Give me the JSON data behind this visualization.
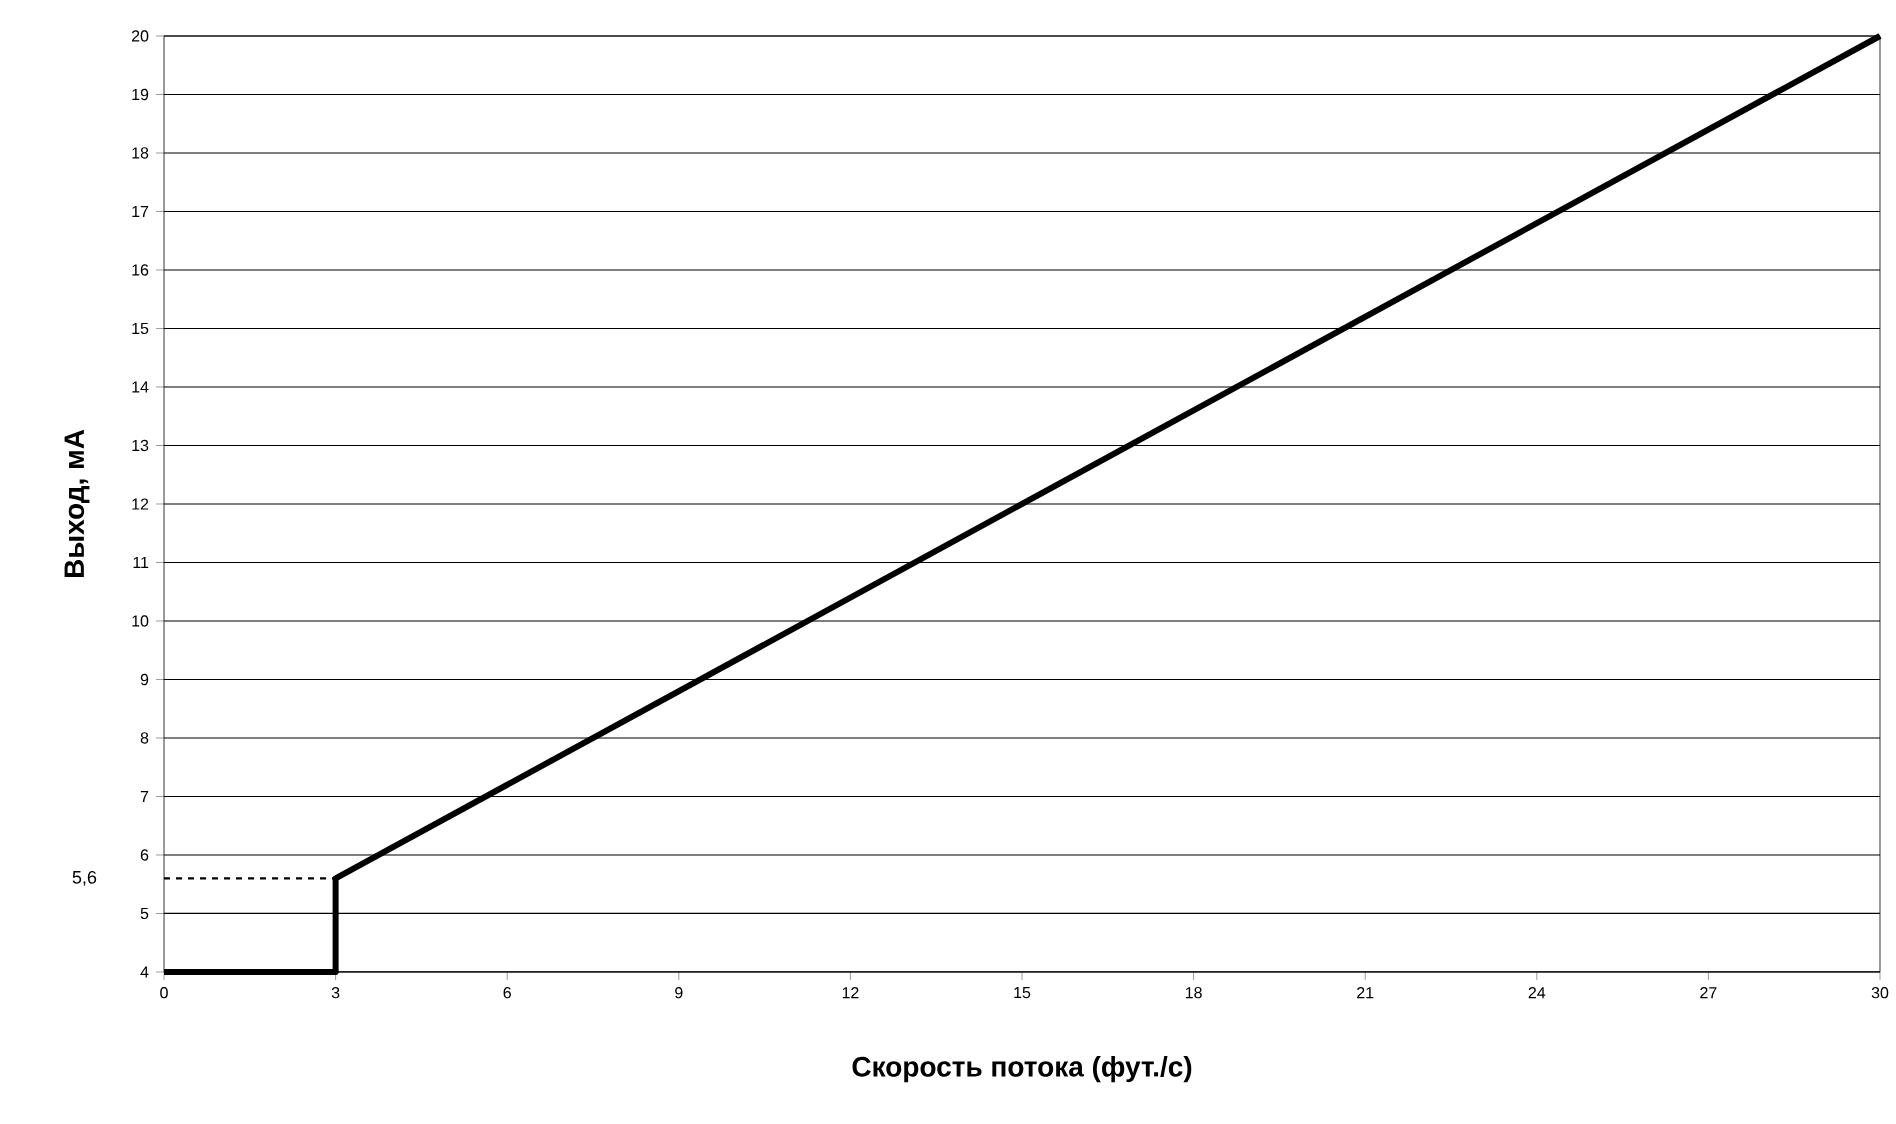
{
  "chart_data": {
    "type": "line",
    "xlabel": "Скорость потока (фут./с)",
    "ylabel": "Выход, мА",
    "series": [
      {
        "color": "#000000",
        "x": [
          0,
          3,
          3,
          30
        ],
        "values": [
          4,
          4,
          5.6,
          20
        ],
        "line_style": "solid"
      },
      {
        "color": "#000000",
        "x": [
          0,
          3
        ],
        "values": [
          5.6,
          5.6
        ],
        "line_style": "dashed"
      }
    ],
    "annotations": [
      "5,6"
    ],
    "xlim": [
      0,
      30
    ],
    "xticks": [
      0,
      3,
      6,
      9,
      12,
      15,
      18,
      21,
      24,
      27,
      30
    ],
    "ylim": [
      4,
      20
    ],
    "yticks": [
      4,
      5,
      6,
      7,
      8,
      9,
      10,
      11,
      12,
      13,
      14,
      15,
      16,
      17,
      18,
      19,
      20
    ],
    "grid": "y",
    "marker": "none"
  }
}
